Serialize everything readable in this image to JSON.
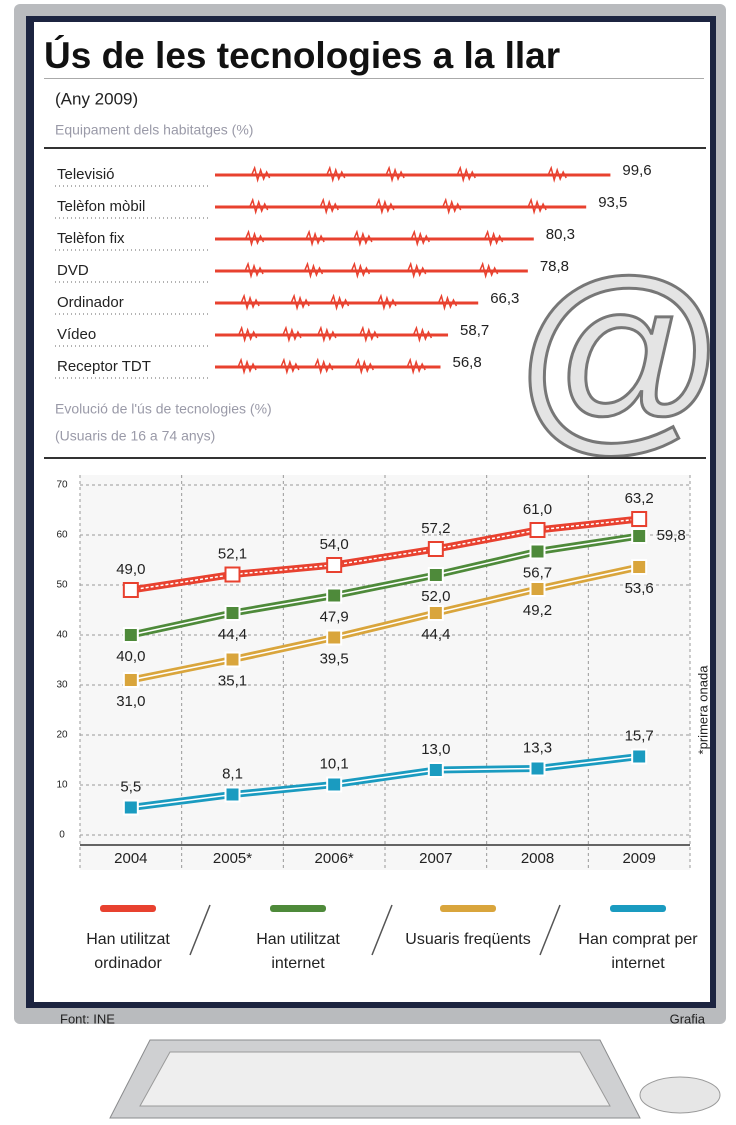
{
  "title": "Ús de les tecnologies a la llar",
  "subtitle": "(Any 2009)",
  "source": "Font: INE",
  "credit": "Grafia",
  "chart_data": [
    {
      "type": "hbar",
      "title": "Equipament dels habitatges (%)",
      "categories": [
        "Televisió",
        "Telèfon mòbil",
        "Telèfon fix",
        "DVD",
        "Ordinador",
        "Vídeo",
        "Receptor TDT"
      ],
      "values": [
        99.6,
        93.5,
        80.3,
        78.8,
        66.3,
        58.7,
        56.8
      ],
      "value_labels": [
        "99,6",
        "93,5",
        "80,3",
        "78,8",
        "66,3",
        "58,7",
        "56,8"
      ],
      "color": "#e8412f",
      "xlim": [
        0,
        100
      ]
    },
    {
      "type": "line",
      "title": "Evolució de l'ús de tecnologies (%)",
      "subtitle": "(Usuaris de 16 a 74 anys)",
      "note": "*primera onada",
      "categories": [
        "2004",
        "2005*",
        "2006*",
        "2007",
        "2008",
        "2009"
      ],
      "ylim": [
        0,
        70
      ],
      "yticks": [
        0,
        10,
        20,
        30,
        40,
        50,
        60,
        70
      ],
      "grid": true,
      "series": [
        {
          "name": "Han utilitzat ordinador",
          "color": "#e8412f",
          "values": [
            49.0,
            52.1,
            54.0,
            57.2,
            61.0,
            63.2
          ],
          "value_labels": [
            "49,0",
            "52,1",
            "54,0",
            "57,2",
            "61,0",
            "63,2"
          ]
        },
        {
          "name": "Han utilitzat internet",
          "color": "#4e8a3a",
          "values": [
            40.0,
            44.4,
            47.9,
            52.0,
            56.7,
            59.8
          ],
          "value_labels": [
            "40,0",
            "44,4",
            "47,9",
            "52,0",
            "56,7",
            "59,8"
          ]
        },
        {
          "name": "Usuaris freqüents",
          "color": "#d9a53c",
          "values": [
            31.0,
            35.1,
            39.5,
            44.4,
            49.2,
            53.6
          ],
          "value_labels": [
            "31,0",
            "35,1",
            "39,5",
            "44,4",
            "49,2",
            "53,6"
          ]
        },
        {
          "name": "Han comprat per internet",
          "color": "#1a9bc0",
          "values": [
            5.5,
            8.1,
            10.1,
            13.0,
            13.3,
            15.7
          ],
          "value_labels": [
            "5,5",
            "8,1",
            "10,1",
            "13,0",
            "13,3",
            "15,7"
          ]
        }
      ]
    }
  ]
}
